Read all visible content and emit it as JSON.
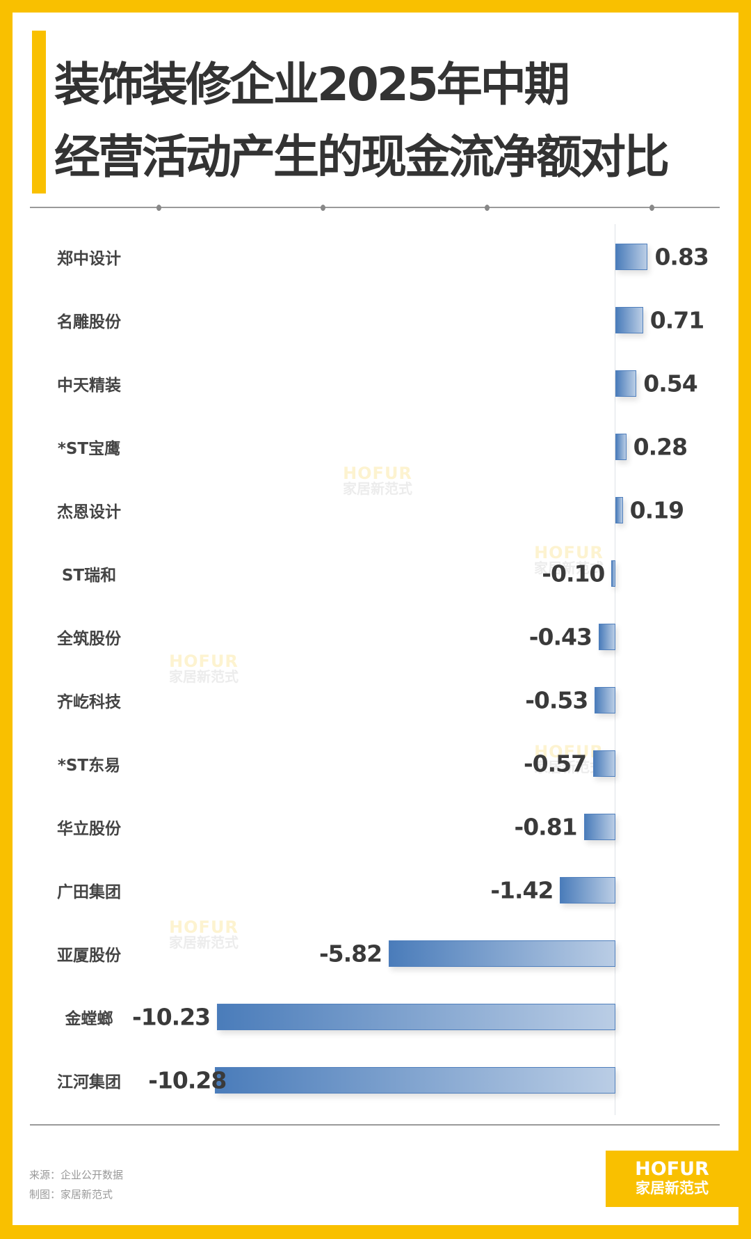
{
  "title_lines": [
    "装饰装修企业2025年中期",
    "经营活动产生的现金流净额对比"
  ],
  "colors": {
    "frame": "#F9C000",
    "bar_dark": "#4a7cba",
    "bar_light": "#bacde5",
    "text": "#333333"
  },
  "chart_data": {
    "type": "bar",
    "orientation": "horizontal",
    "title": "装饰装修企业2025年中期经营活动产生的现金流净额对比",
    "categories": [
      "郑中设计",
      "名雕股份",
      "中天精装",
      "*ST宝鹰",
      "杰恩设计",
      "ST瑞和",
      "全筑股份",
      "齐屹科技",
      "*ST东易",
      "华立股份",
      "广田集团",
      "亚厦股份",
      "金螳螂",
      "江河集团"
    ],
    "values": [
      0.83,
      0.71,
      0.54,
      0.28,
      0.19,
      -0.1,
      -0.43,
      -0.53,
      -0.57,
      -0.81,
      -1.42,
      -5.82,
      -10.23,
      -10.28
    ],
    "value_labels": [
      "0.83",
      "0.71",
      "0.54",
      "0.28",
      "0.19",
      "-0.10",
      "-0.43",
      "-0.53",
      "-0.57",
      "-0.81",
      "-1.42",
      "-5.82",
      "-10.23",
      "-10.28"
    ],
    "xlim": [
      -10.28,
      0.83
    ],
    "grid": false,
    "legend": "none"
  },
  "watermark": {
    "en": "HOFUR",
    "cn": "家居新范式"
  },
  "footer": {
    "source": "来源：企业公开数据",
    "credit": "制图：家居新范式"
  },
  "logo": {
    "en": "HOFUR",
    "cn": "家居新范式"
  }
}
